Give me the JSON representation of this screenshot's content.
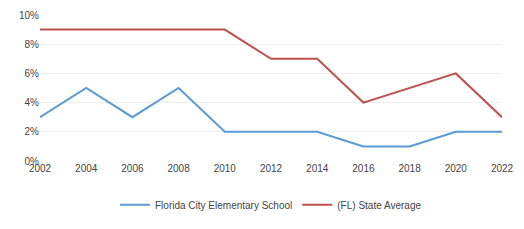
{
  "chart_data": {
    "type": "line",
    "x": [
      2002,
      2004,
      2006,
      2008,
      2010,
      2012,
      2014,
      2016,
      2018,
      2020,
      2022
    ],
    "series": [
      {
        "name": "Florida City Elementary School",
        "color": "#5b9bd5",
        "values": [
          0.03,
          0.05,
          0.03,
          0.05,
          0.02,
          0.02,
          0.02,
          0.01,
          0.01,
          0.02,
          0.02
        ]
      },
      {
        "name": "(FL) State Average",
        "color": "#c0504d",
        "values": [
          0.09,
          0.09,
          0.09,
          0.09,
          0.09,
          0.07,
          0.07,
          0.04,
          0.05,
          0.06,
          0.03
        ]
      }
    ],
    "xlim": [
      2002,
      2022
    ],
    "xticks": [
      2002,
      2004,
      2006,
      2008,
      2010,
      2012,
      2014,
      2016,
      2018,
      2020,
      2022
    ],
    "ylim": [
      0,
      0.1
    ],
    "yticks": [
      {
        "value": 0,
        "label": "0%"
      },
      {
        "value": 0.02,
        "label": "2%"
      },
      {
        "value": 0.04,
        "label": "4%"
      },
      {
        "value": 0.06,
        "label": "6%"
      },
      {
        "value": 0.08,
        "label": "8%"
      },
      {
        "value": 0.1,
        "label": "10%"
      }
    ],
    "grid": true,
    "legend": "bottom"
  }
}
